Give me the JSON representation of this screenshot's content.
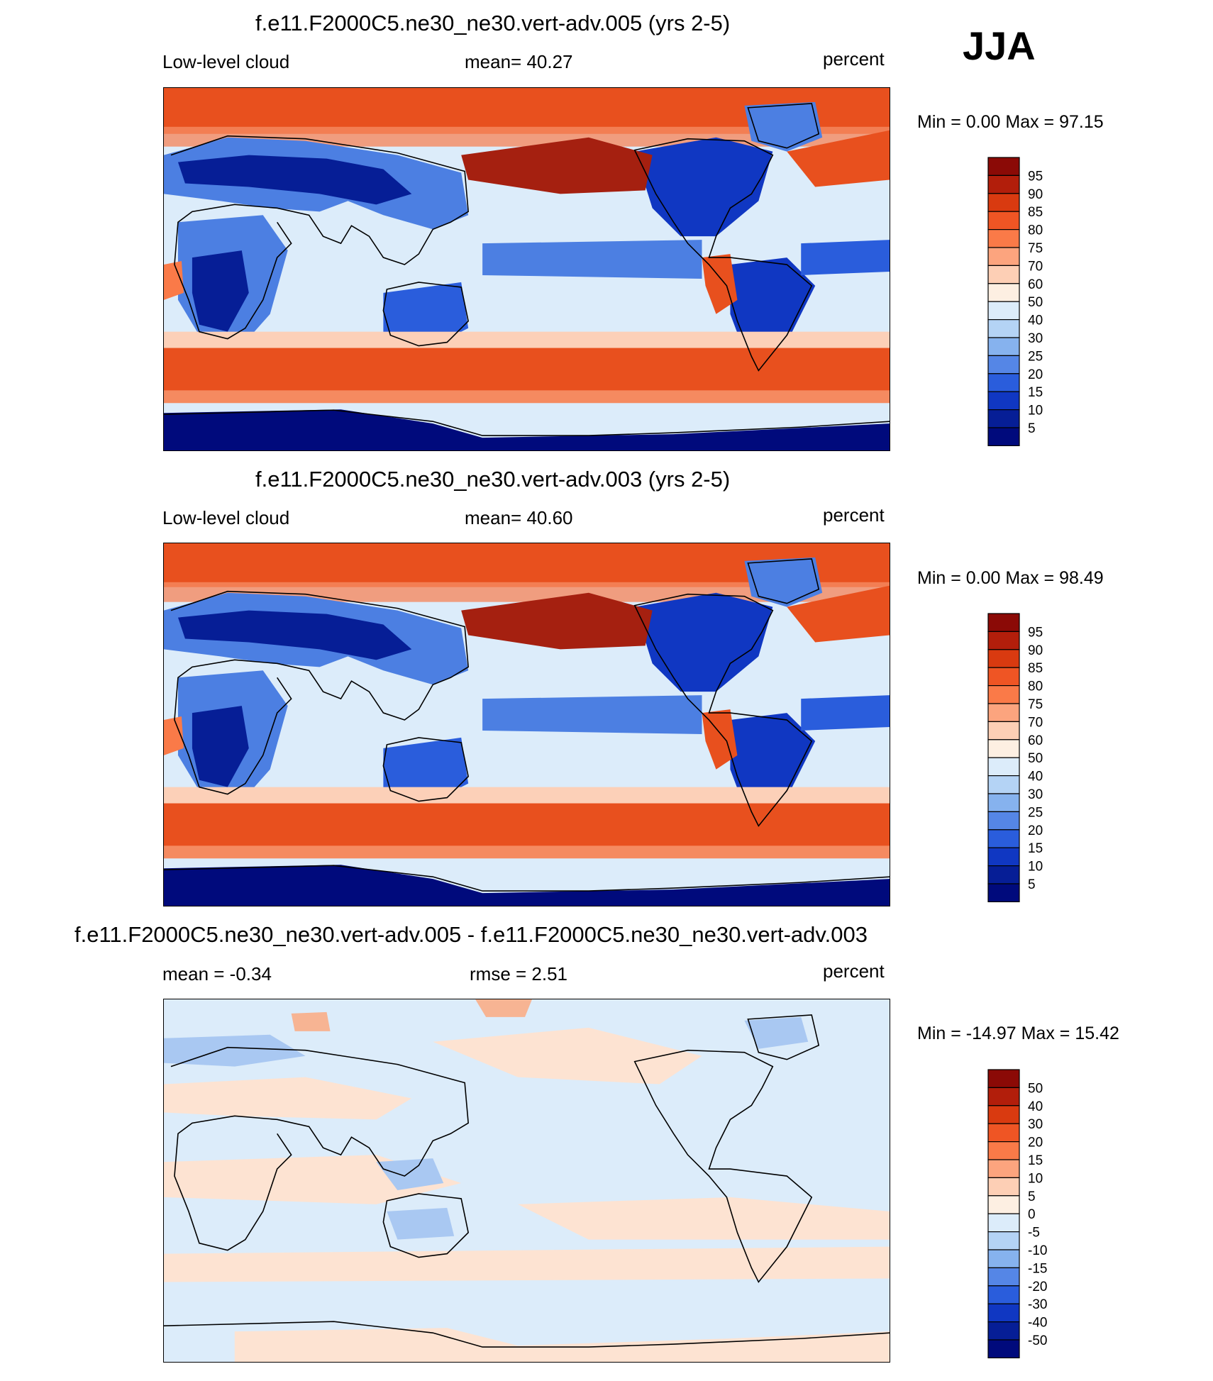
{
  "season_label": "JJA",
  "panels": [
    {
      "title": "f.e11.F2000C5.ne30_ne30.vert-adv.005 (yrs 2-5)",
      "left_label": "Low-level cloud",
      "center_label": "mean=  40.27",
      "right_label": "percent",
      "minmax_label": "Min =   0.00 Max =  97.15",
      "min": 0.0,
      "max": 97.15,
      "mean": 40.27
    },
    {
      "title": "f.e11.F2000C5.ne30_ne30.vert-adv.003 (yrs 2-5)",
      "left_label": "Low-level cloud",
      "center_label": "mean=  40.60",
      "right_label": "percent",
      "minmax_label": "Min =   0.00 Max =  98.49",
      "min": 0.0,
      "max": 98.49,
      "mean": 40.6
    },
    {
      "title": "f.e11.F2000C5.ne30_ne30.vert-adv.005 - f.e11.F2000C5.ne30_ne30.vert-adv.003",
      "left_label": "mean =  -0.34",
      "center_label": "rmse =   2.51",
      "right_label": "percent",
      "minmax_label": "Min = -14.97 Max =  15.42",
      "min": -14.97,
      "max": 15.42,
      "mean": -0.34,
      "rmse": 2.51
    }
  ],
  "colorbar_levels": [
    "95",
    "90",
    "85",
    "80",
    "75",
    "70",
    "60",
    "50",
    "40",
    "30",
    "25",
    "20",
    "15",
    "10",
    "5"
  ],
  "diff_colorbar_levels": [
    "50",
    "40",
    "30",
    "20",
    "15",
    "10",
    "5",
    "0",
    "-5",
    "-10",
    "-15",
    "-20",
    "-30",
    "-40",
    "-50"
  ],
  "colorbar_colors": [
    "#8b0a06",
    "#b21e0b",
    "#d93a10",
    "#ef5524",
    "#fa7a48",
    "#fca47e",
    "#fdcfb5",
    "#fdefe2",
    "#dcecfa",
    "#b4d3f5",
    "#86b2ee",
    "#5586e6",
    "#2a5ddc",
    "#1037c2",
    "#061e96",
    "#000a7c"
  ],
  "map_colors": {
    "very_high": "#a52010",
    "high": "#e8501e",
    "mid_high": "#f58a60",
    "light_high": "#fcd0b8",
    "neutral": "#fdefe2",
    "light_low": "#dcecfa",
    "low": "#8cb8ef",
    "mid_low": "#4c7fe2",
    "very_low": "#0b2ea8",
    "lowest": "#000a7c",
    "diff_base": "#dcecfa",
    "diff_pos": "#fde3d2",
    "diff_neg": "#a9c8f2"
  }
}
